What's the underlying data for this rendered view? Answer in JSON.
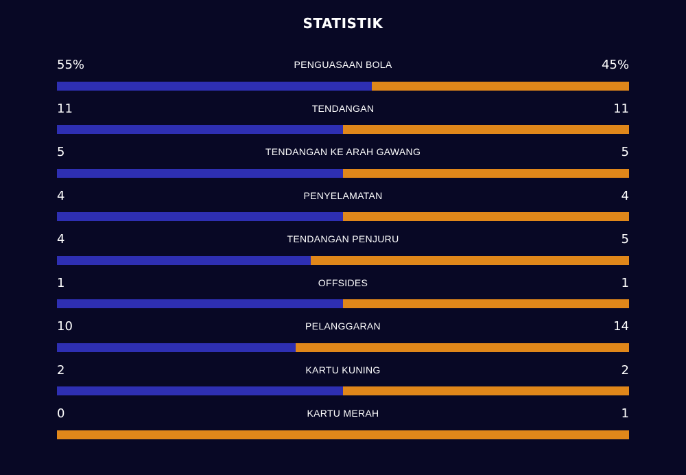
{
  "title": "STATISTIK",
  "colors": {
    "background": "#080825",
    "home_bar": "#2e2fb2",
    "away_bar": "#e0871a",
    "text": "#ffffff"
  },
  "stats": [
    {
      "label": "PENGUASAAN BOLA",
      "home": "55%",
      "away": "45%",
      "home_share": 0.55
    },
    {
      "label": "TENDANGAN",
      "home": "11",
      "away": "11",
      "home_share": 0.5
    },
    {
      "label": "TENDANGAN KE ARAH GAWANG",
      "home": "5",
      "away": "5",
      "home_share": 0.5
    },
    {
      "label": "PENYELAMATAN",
      "home": "4",
      "away": "4",
      "home_share": 0.5
    },
    {
      "label": "TENDANGAN PENJURU",
      "home": "4",
      "away": "5",
      "home_share": 0.444
    },
    {
      "label": "OFFSIDES",
      "home": "1",
      "away": "1",
      "home_share": 0.5
    },
    {
      "label": "PELANGGARAN",
      "home": "10",
      "away": "14",
      "home_share": 0.417
    },
    {
      "label": "KARTU KUNING",
      "home": "2",
      "away": "2",
      "home_share": 0.5
    },
    {
      "label": "KARTU MERAH",
      "home": "0",
      "away": "1",
      "home_share": 0.0
    }
  ]
}
